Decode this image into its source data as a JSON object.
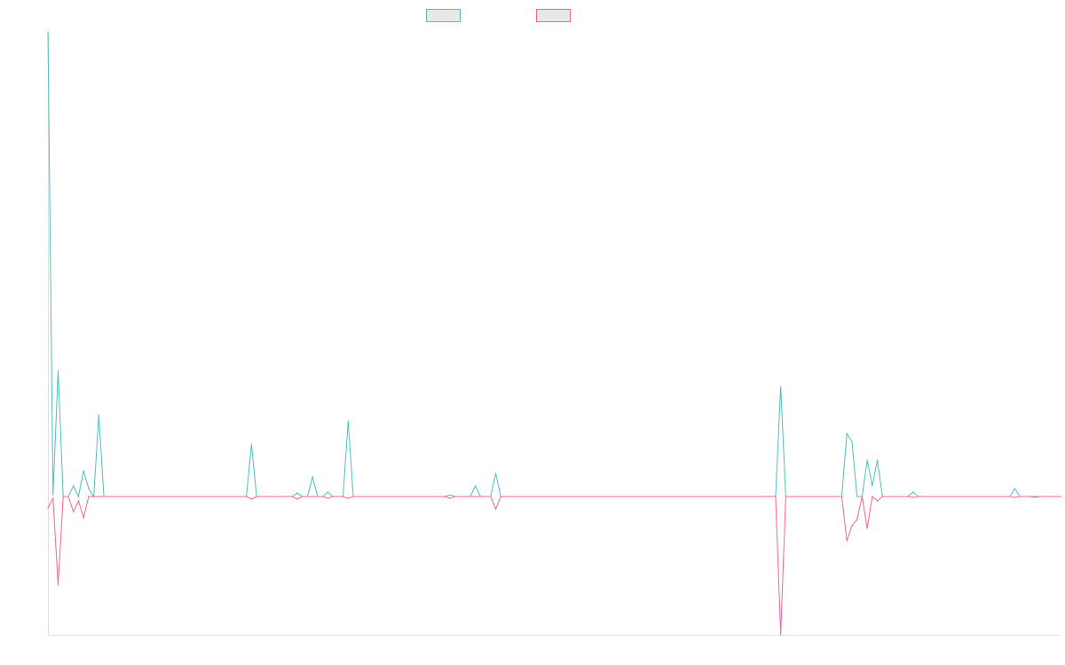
{
  "chart_data": {
    "type": "line",
    "title": "",
    "xlabel": "",
    "ylabel": "",
    "grid": false,
    "legend_placement": "top-center",
    "ylim": [
      -156,
      524
    ],
    "x_count": 200,
    "series": [
      {
        "name": "",
        "color": "#4bc0c0",
        "fill": "#e8e8e8",
        "points": [
          [
            0,
            524
          ],
          [
            1,
            2
          ],
          [
            2,
            142
          ],
          [
            3,
            0
          ],
          [
            4,
            0
          ],
          [
            5,
            12
          ],
          [
            6,
            0
          ],
          [
            7,
            29
          ],
          [
            8,
            9
          ],
          [
            9,
            0
          ],
          [
            10,
            92
          ],
          [
            11,
            0
          ],
          [
            39,
            0
          ],
          [
            40,
            59
          ],
          [
            41,
            0
          ],
          [
            48,
            0
          ],
          [
            49,
            4
          ],
          [
            50,
            0
          ],
          [
            51,
            0
          ],
          [
            52,
            22
          ],
          [
            53,
            0
          ],
          [
            54,
            0
          ],
          [
            55,
            5
          ],
          [
            56,
            0
          ],
          [
            58,
            0
          ],
          [
            59,
            85
          ],
          [
            60,
            0
          ],
          [
            78,
            0
          ],
          [
            79,
            2
          ],
          [
            80,
            0
          ],
          [
            83,
            0
          ],
          [
            84,
            12
          ],
          [
            85,
            0
          ],
          [
            87,
            0
          ],
          [
            88,
            26
          ],
          [
            89,
            0
          ],
          [
            143,
            0
          ],
          [
            144,
            124
          ],
          [
            145,
            0
          ],
          [
            156,
            0
          ],
          [
            157,
            71
          ],
          [
            158,
            62
          ],
          [
            159,
            0
          ],
          [
            160,
            0
          ],
          [
            161,
            41
          ],
          [
            162,
            12
          ],
          [
            163,
            41
          ],
          [
            164,
            0
          ],
          [
            169,
            0
          ],
          [
            170,
            5
          ],
          [
            171,
            0
          ],
          [
            189,
            0
          ],
          [
            190,
            9
          ],
          [
            191,
            0
          ],
          [
            193,
            0
          ],
          [
            194,
            0
          ],
          [
            199,
            0
          ]
        ]
      },
      {
        "name": "",
        "color": "#ff6384",
        "fill": "#e8e8e8",
        "points": [
          [
            0,
            -13
          ],
          [
            1,
            -2
          ],
          [
            2,
            -100
          ],
          [
            3,
            0
          ],
          [
            4,
            0
          ],
          [
            5,
            -17
          ],
          [
            6,
            -5
          ],
          [
            7,
            -24
          ],
          [
            8,
            0
          ],
          [
            9,
            0
          ],
          [
            10,
            0
          ],
          [
            11,
            0
          ],
          [
            39,
            0
          ],
          [
            40,
            -3
          ],
          [
            41,
            0
          ],
          [
            48,
            0
          ],
          [
            49,
            -3
          ],
          [
            50,
            0
          ],
          [
            54,
            0
          ],
          [
            55,
            -2
          ],
          [
            56,
            0
          ],
          [
            58,
            0
          ],
          [
            59,
            -2
          ],
          [
            60,
            0
          ],
          [
            78,
            0
          ],
          [
            79,
            -2
          ],
          [
            80,
            0
          ],
          [
            84,
            0
          ],
          [
            85,
            0
          ],
          [
            87,
            0
          ],
          [
            88,
            -14
          ],
          [
            89,
            0
          ],
          [
            143,
            0
          ],
          [
            144,
            -156
          ],
          [
            145,
            0
          ],
          [
            156,
            0
          ],
          [
            157,
            -50
          ],
          [
            158,
            -33
          ],
          [
            159,
            -26
          ],
          [
            160,
            0
          ],
          [
            161,
            -36
          ],
          [
            162,
            0
          ],
          [
            163,
            -5
          ],
          [
            164,
            0
          ],
          [
            169,
            0
          ],
          [
            170,
            -1
          ],
          [
            171,
            0
          ],
          [
            189,
            0
          ],
          [
            190,
            -1
          ],
          [
            191,
            0
          ],
          [
            193,
            0
          ],
          [
            194,
            -1
          ],
          [
            195,
            0
          ],
          [
            199,
            0
          ]
        ]
      }
    ]
  }
}
